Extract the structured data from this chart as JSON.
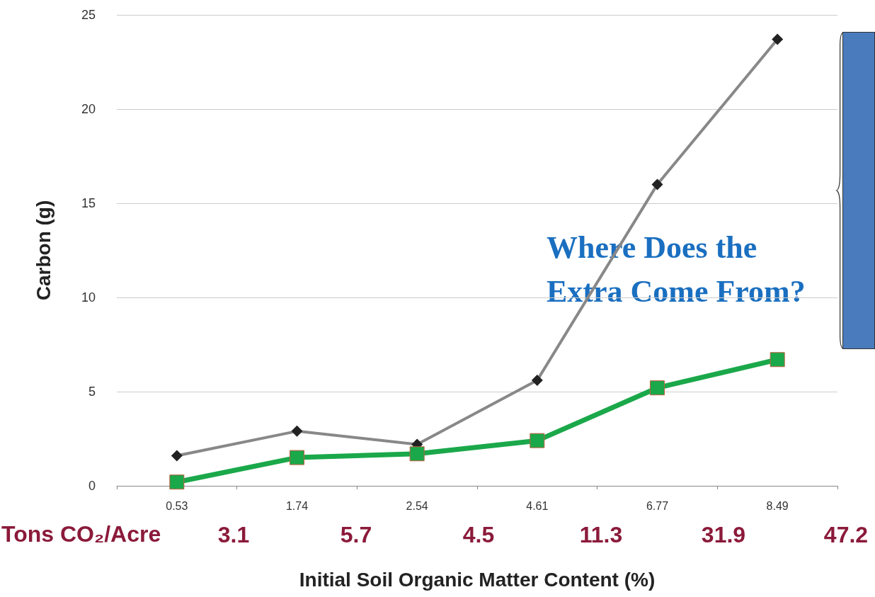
{
  "chart_data": {
    "type": "line",
    "xlabel": "Initial Soil Organic Matter Content (%)",
    "ylabel": "Carbon (g)",
    "categories": [
      "0.53",
      "1.74",
      "2.54",
      "4.61",
      "6.77",
      "8.49"
    ],
    "series": [
      {
        "color": "#222222",
        "values": [
          1.6,
          2.9,
          2.2,
          5.6,
          16.0,
          23.7
        ],
        "marker": "diamond"
      },
      {
        "color": "#1aa84a",
        "values": [
          0.2,
          1.5,
          1.7,
          2.4,
          5.2,
          6.7
        ],
        "marker": "square"
      }
    ],
    "ylim": [
      0,
      25
    ],
    "yticks": [
      0,
      5,
      10,
      15,
      20,
      25
    ],
    "grid": "y",
    "annotations": [
      "Tons CO₂/Acre",
      "3.1",
      "5.7",
      "4.5",
      "11.3",
      "31.9",
      "47.2",
      "Where Does the Extra Come From?"
    ]
  }
}
